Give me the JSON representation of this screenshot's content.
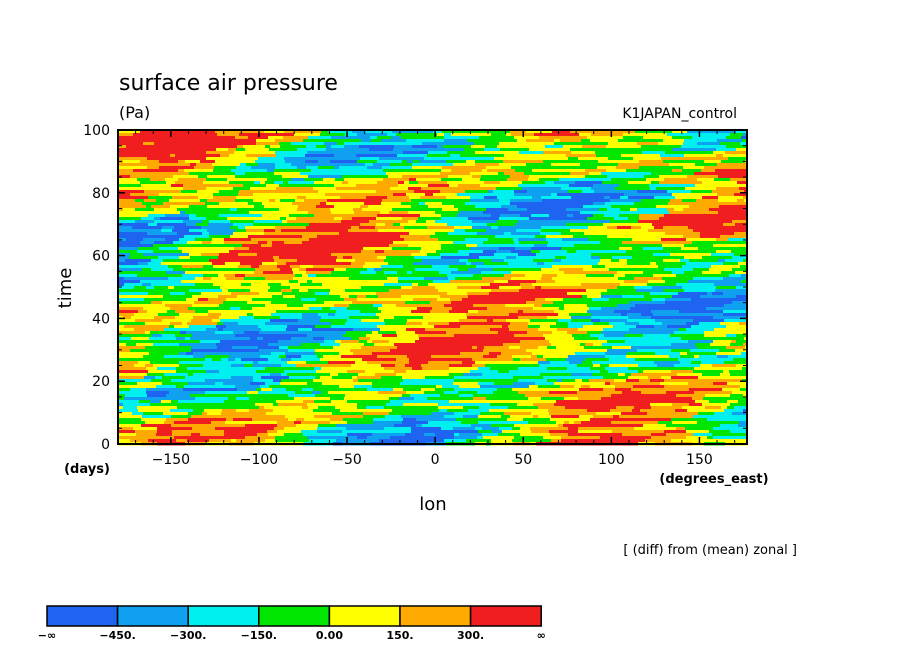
{
  "chart_data": {
    "type": "heatmap",
    "title": "surface air pressure",
    "units": "(Pa)",
    "dataset": "K1JAPAN_control",
    "xlabel": "lon",
    "xunits": "(degrees_east)",
    "ylabel": "time",
    "yunits": "(days)",
    "xlim": [
      -180,
      177
    ],
    "ylim": [
      0,
      100
    ],
    "xticks": [
      -150,
      -100,
      -50,
      0,
      50,
      100,
      150
    ],
    "yticks": [
      0,
      20,
      40,
      60,
      80,
      100
    ],
    "annotation": "[ (diff) from (mean) zonal ]",
    "colorbar": {
      "levels": [
        "-∞",
        "-450.",
        "-300.",
        "-150.",
        "0.00",
        "150.",
        "300.",
        "∞"
      ],
      "colors": [
        "#1e64f0",
        "#0fa0f0",
        "#00f0f0",
        "#00e600",
        "#ffff00",
        "#ffaa00",
        "#f01e1e"
      ]
    }
  }
}
